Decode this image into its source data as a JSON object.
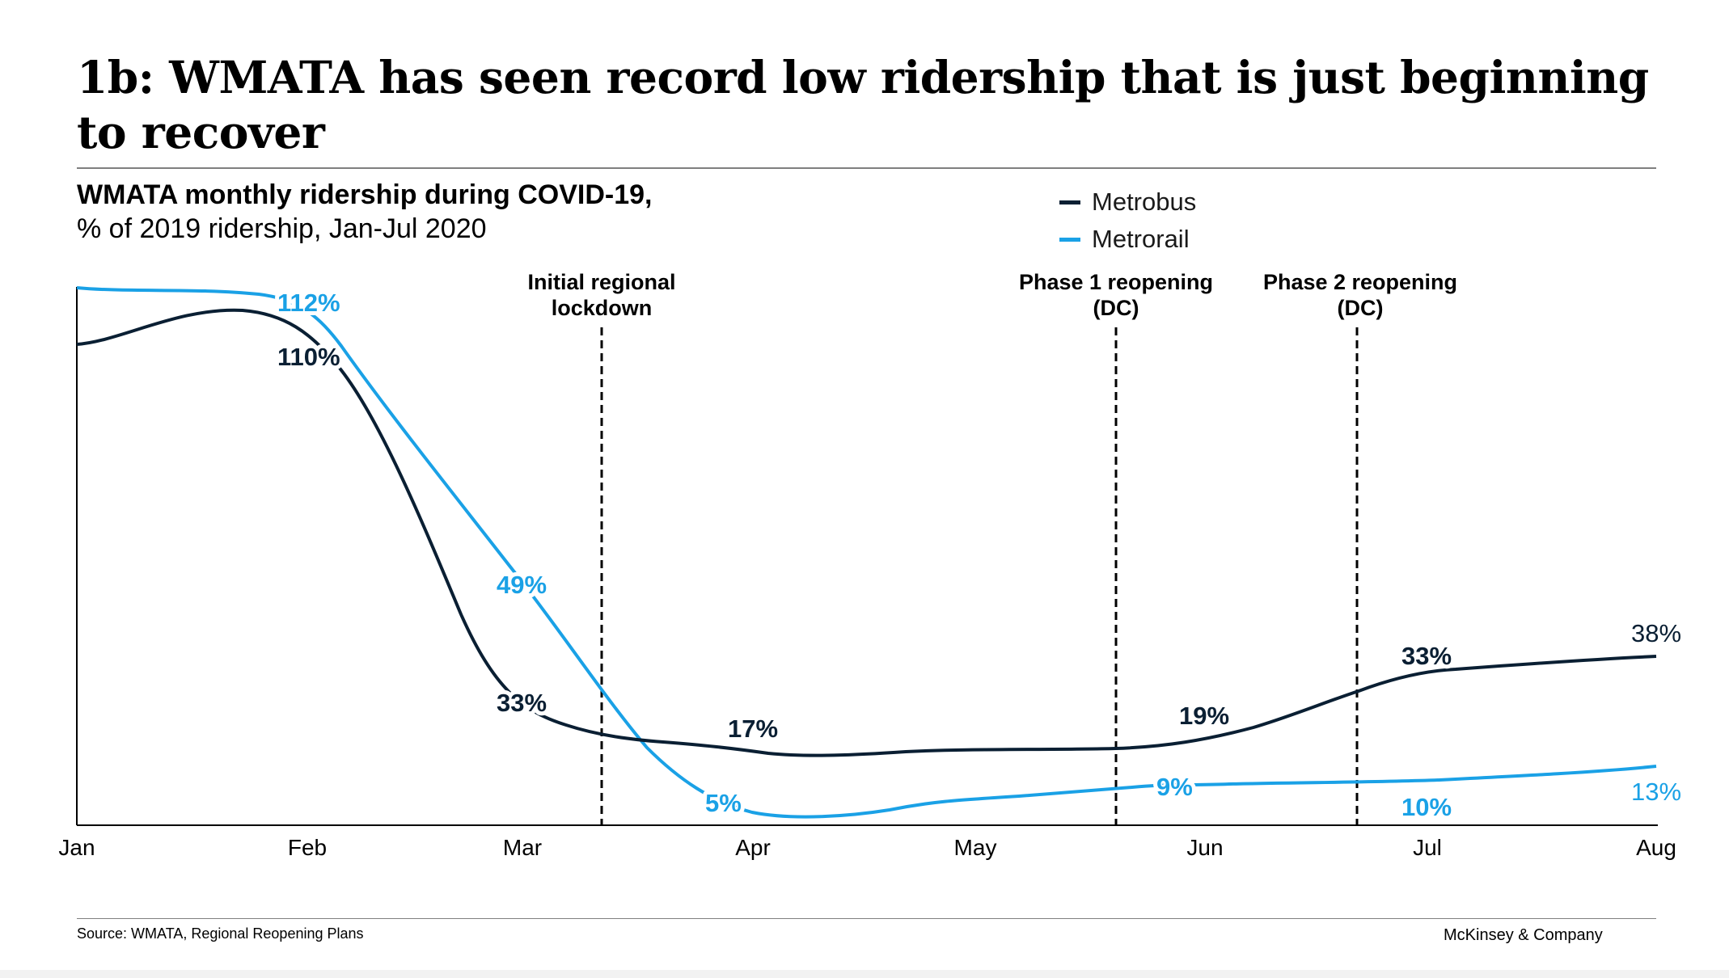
{
  "title": "1b: WMATA has seen record low ridership that is just beginning to recover",
  "chart_data": {
    "type": "line",
    "title": "WMATA monthly ridership during COVID-19,",
    "subtitle": "% of 2019 ridership, Jan-Jul 2020",
    "categories": [
      "Jan",
      "Feb",
      "Mar",
      "Apr",
      "May",
      "Jun",
      "Jul",
      "Aug"
    ],
    "series": [
      {
        "name": "Metrobus",
        "color": "#0a1f33",
        "values": [
          null,
          110,
          33,
          17,
          null,
          19,
          33,
          38
        ],
        "labels": [
          "",
          "110%",
          "33%",
          "17%",
          "",
          "19%",
          "33%",
          "38%"
        ]
      },
      {
        "name": "Metrorail",
        "color": "#1aa1e6",
        "values": [
          null,
          112,
          49,
          5,
          null,
          9,
          10,
          13
        ],
        "labels": [
          "",
          "112%",
          "49%",
          "5%",
          "",
          "9%",
          "10%",
          "13%"
        ]
      }
    ],
    "annotations": [
      {
        "text_line1": "Initial regional",
        "text_line2": "lockdown",
        "position": "between Mar and Apr"
      },
      {
        "text_line1": "Phase 1 reopening",
        "text_line2": "(DC)",
        "position": "between May and Jun"
      },
      {
        "text_line1": "Phase 2 reopening",
        "text_line2": "(DC)",
        "position": "between Jun and Jul"
      }
    ],
    "legend_position": "top-center",
    "grid": false
  },
  "footer": {
    "source": "Source: WMATA, Regional Reopening Plans",
    "brand": "McKinsey & Company"
  }
}
